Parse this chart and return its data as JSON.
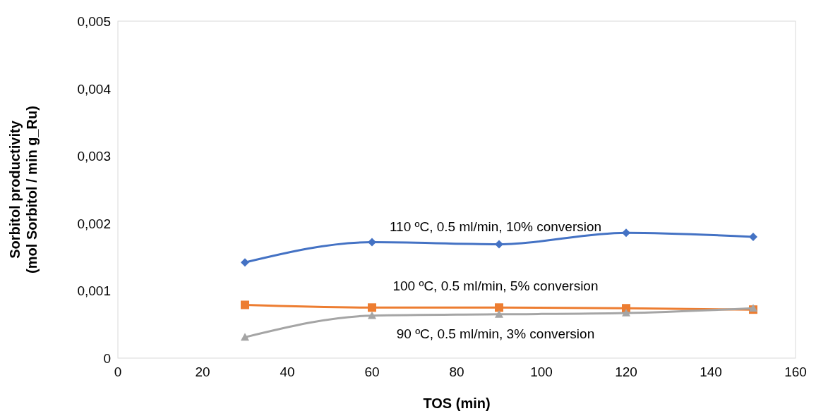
{
  "chart_data": {
    "type": "line",
    "xlabel": "TOS (min)",
    "ylabel": "Sorbitol productivity\n(mol Sorbitol / min g_Ru)",
    "x": [
      30,
      60,
      90,
      120,
      150
    ],
    "series": [
      {
        "name": "110 ºC, 0.5 ml/min, 10% conversion",
        "color": "#4472c4",
        "marker": "diamond",
        "values": [
          0.00142,
          0.00172,
          0.00169,
          0.00186,
          0.0018
        ]
      },
      {
        "name": "100 ºC, 0.5 ml/min, 5% conversion",
        "color": "#ed7d31",
        "marker": "square",
        "values": [
          0.00079,
          0.00075,
          0.00075,
          0.00074,
          0.00072
        ]
      },
      {
        "name": "90 ºC, 0.5 ml/min, 3% conversion",
        "color": "#a5a5a5",
        "marker": "triangle",
        "values": [
          0.00031,
          0.00063,
          0.00065,
          0.00067,
          0.00074
        ]
      }
    ],
    "xlim": [
      0,
      160
    ],
    "xticks": [
      0,
      20,
      40,
      60,
      80,
      100,
      120,
      140,
      160
    ],
    "ylim": [
      0,
      0.005
    ],
    "yticks": [
      0,
      {
        "value": 0.001,
        "label": "0,001"
      },
      {
        "value": 0.002,
        "label": "0,002"
      },
      {
        "value": 0.003,
        "label": "0,003"
      },
      {
        "value": 0.004,
        "label": "0,004"
      },
      {
        "value": 0.005,
        "label": "0,005"
      }
    ],
    "grid": false,
    "legend": false
  }
}
